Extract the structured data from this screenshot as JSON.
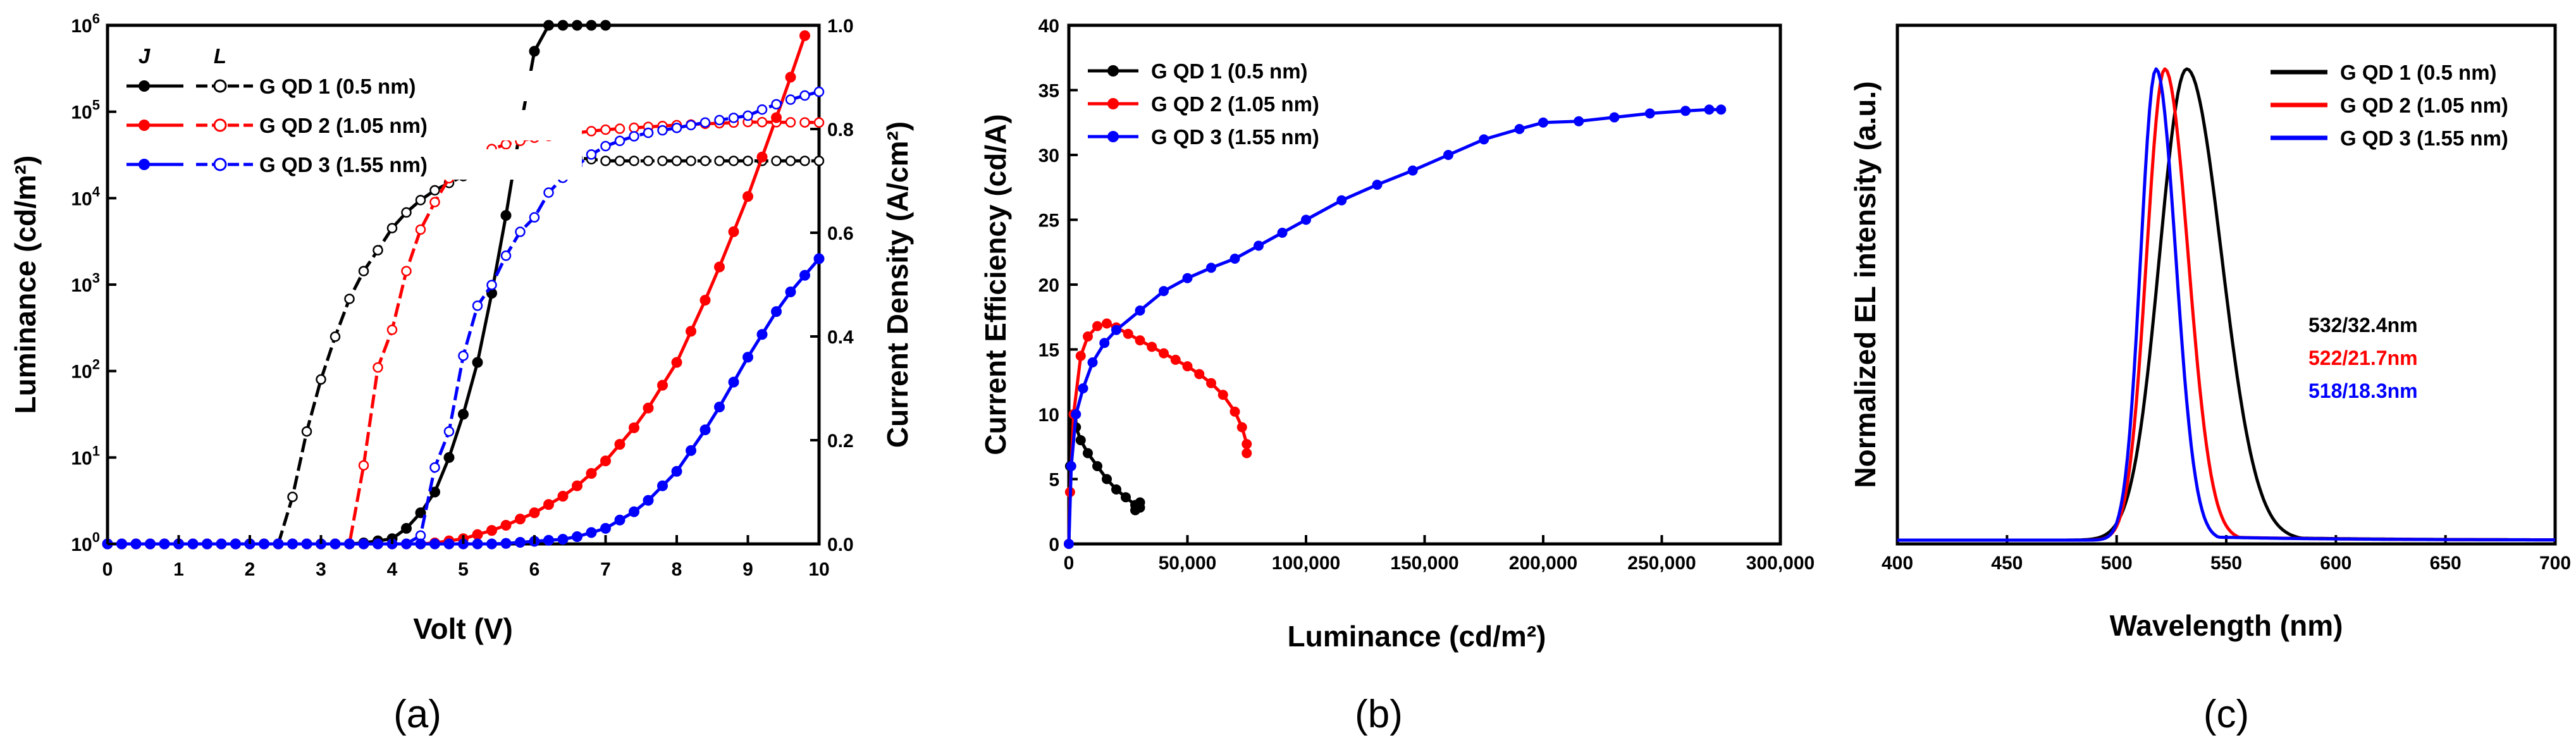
{
  "chart_data": [
    {
      "type": "line",
      "panel_label": "(a)",
      "xlabel": "Volt (V)",
      "ylabel": "Luminance (cd/m²)",
      "y2label": "Current Density (A/cm²)",
      "xlim": [
        0,
        10
      ],
      "ylim": [
        1,
        1000000
      ],
      "yscale": "log",
      "y2lim": [
        0,
        1.0
      ],
      "xticks": [
        "0",
        "1",
        "2",
        "3",
        "4",
        "5",
        "6",
        "7",
        "8",
        "9",
        "10"
      ],
      "yticks": [
        "10^0",
        "10^1",
        "10^2",
        "10^3",
        "10^4",
        "10^5",
        "10^6"
      ],
      "y2ticks": [
        "0.0",
        "0.2",
        "0.4",
        "0.6",
        "0.8",
        "1.0"
      ],
      "legend_header": [
        "J",
        "L"
      ],
      "series": [
        {
          "name": "G QD 1 (0.5 nm)",
          "color": "#000000",
          "luminance": {
            "x": [
              0,
              2.4,
              2.5,
              2.6,
              2.8,
              3.0,
              3.2,
              3.5,
              3.8,
              4.0,
              4.3,
              4.5,
              4.8,
              5.0,
              5.3,
              5.5,
              6.0,
              6.5,
              7.0
            ],
            "y": [
              1,
              1,
              1.2,
              3.5,
              20,
              80,
              250,
              900,
              2500,
              4500,
              8000,
              11000,
              15000,
              18000,
              22000,
              25000,
              28000,
              30000,
              27000
            ]
          },
          "current_density": {
            "x": [
              0,
              3.5,
              4.0,
              4.3,
              4.6,
              4.9,
              5.2,
              5.5,
              5.8,
              6.0,
              6.2,
              6.5,
              7.0
            ],
            "y": [
              0,
              0,
              0.01,
              0.04,
              0.1,
              0.2,
              0.35,
              0.55,
              0.8,
              0.95,
              1.0,
              1.0,
              1.0
            ]
          }
        },
        {
          "name": "G QD 2 (1.05 nm)",
          "color": "#ff0000",
          "luminance": {
            "x": [
              0,
              3.4,
              3.5,
              3.7,
              4.0,
              4.3,
              4.6,
              5.0,
              5.5,
              6.0,
              6.5,
              7.0,
              8.0,
              9.0,
              10.0
            ],
            "y": [
              1,
              1,
              1.2,
              15,
              300,
              2000,
              9000,
              25000,
              40000,
              50000,
              56000,
              62000,
              70000,
              76000,
              75000
            ]
          },
          "current_density": {
            "x": [
              0,
              4.5,
              5.0,
              5.5,
              6.0,
              6.5,
              7.0,
              7.5,
              8.0,
              8.5,
              9.0,
              9.5,
              9.8
            ],
            "y": [
              0,
              0,
              0.01,
              0.03,
              0.06,
              0.1,
              0.16,
              0.24,
              0.35,
              0.5,
              0.67,
              0.86,
              0.98
            ]
          }
        },
        {
          "name": "G QD 3 (1.55 nm)",
          "color": "#0000ff",
          "luminance": {
            "x": [
              0,
              4.3,
              4.5,
              4.8,
              5.0,
              5.5,
              6.0,
              6.5,
              7.0,
              7.5,
              8.0,
              9.0,
              10.0
            ],
            "y": [
              1,
              1,
              1.5,
              20,
              150,
              1200,
              6000,
              20000,
              40000,
              55000,
              65000,
              90000,
              170000
            ]
          },
          "current_density": {
            "x": [
              0,
              5.5,
              6.0,
              6.5,
              7.0,
              7.5,
              8.0,
              8.5,
              9.0,
              9.5,
              10.0
            ],
            "y": [
              0,
              0,
              0.005,
              0.01,
              0.03,
              0.07,
              0.14,
              0.24,
              0.36,
              0.47,
              0.55
            ]
          }
        }
      ]
    },
    {
      "type": "line",
      "panel_label": "(b)",
      "xlabel": "Luminance (cd/m²)",
      "ylabel": "Current Efficiency (cd/A)",
      "xlim": [
        0,
        300000
      ],
      "ylim": [
        0,
        40
      ],
      "xticks": [
        "0",
        "50,000",
        "100,000",
        "150,000",
        "200,000",
        "250,000",
        "300,000"
      ],
      "yticks": [
        "0",
        "5",
        "10",
        "15",
        "20",
        "25",
        "30",
        "35",
        "40"
      ],
      "series": [
        {
          "name": "G QD 1 (0.5 nm)",
          "color": "#000000",
          "x": [
            0,
            500,
            1500,
            3000,
            5000,
            8000,
            12000,
            16000,
            20000,
            24000,
            28000,
            30000,
            30000,
            28000
          ],
          "y": [
            0,
            6,
            9.5,
            9,
            8,
            7,
            6,
            5,
            4.2,
            3.6,
            3.0,
            2.8,
            3.2,
            2.6
          ]
        },
        {
          "name": "G QD 2 (1.05 nm)",
          "color": "#ff0000",
          "x": [
            0,
            500,
            2000,
            5000,
            8000,
            12000,
            16000,
            20000,
            25000,
            30000,
            35000,
            40000,
            45000,
            50000,
            55000,
            60000,
            65000,
            70000,
            73000,
            75000,
            75000
          ],
          "y": [
            0,
            4,
            10,
            14.5,
            16,
            16.8,
            17,
            16.7,
            16.2,
            15.7,
            15.2,
            14.7,
            14.2,
            13.7,
            13.1,
            12.4,
            11.5,
            10.2,
            9.0,
            7.7,
            7.0
          ]
        },
        {
          "name": "G QD 3 (1.55 nm)",
          "color": "#0000ff",
          "x": [
            0,
            1000,
            3000,
            6000,
            10000,
            15000,
            20000,
            30000,
            40000,
            50000,
            60000,
            70000,
            80000,
            90000,
            100000,
            115000,
            130000,
            145000,
            160000,
            175000,
            190000,
            200000,
            215000,
            230000,
            245000,
            260000,
            270000,
            275000
          ],
          "y": [
            0,
            6,
            10,
            12,
            14,
            15.5,
            16.5,
            18,
            19.5,
            20.5,
            21.3,
            22,
            23,
            24,
            25,
            26.5,
            27.7,
            28.8,
            30,
            31.2,
            32,
            32.5,
            32.6,
            32.9,
            33.2,
            33.4,
            33.5,
            33.5
          ]
        }
      ]
    },
    {
      "type": "line",
      "panel_label": "(c)",
      "xlabel": "Wavelength (nm)",
      "ylabel": "Normalized EL intensity (a.u.)",
      "xlim": [
        400,
        700
      ],
      "xticks": [
        "400",
        "450",
        "500",
        "550",
        "600",
        "650",
        "700"
      ],
      "annotations": [
        {
          "text": "532/32.4nm",
          "color": "#000000"
        },
        {
          "text": "522/21.7nm",
          "color": "#ff0000"
        },
        {
          "text": "518/18.3nm",
          "color": "#0000ff"
        }
      ],
      "series": [
        {
          "name": "G QD 1 (0.5 nm)",
          "color": "#000000",
          "peak_nm": 532,
          "fwhm_nm": 32.4
        },
        {
          "name": "G QD 2 (1.05 nm)",
          "color": "#ff0000",
          "peak_nm": 522,
          "fwhm_nm": 21.7
        },
        {
          "name": "G QD 3 (1.55 nm)",
          "color": "#0000ff",
          "peak_nm": 518,
          "fwhm_nm": 18.3
        }
      ]
    }
  ]
}
